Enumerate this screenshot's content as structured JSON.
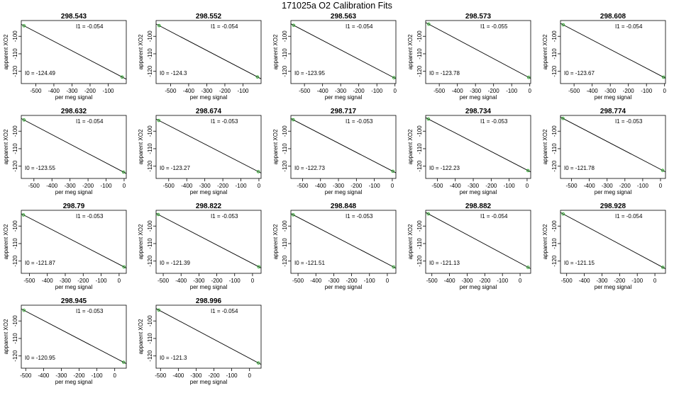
{
  "title": "171025a   O2 Calibration Fits",
  "colors": {
    "line": "#000000",
    "points": "#22aa22",
    "frame": "#000000"
  },
  "chart_data": [
    {
      "type": "scatter",
      "title": "298.543",
      "xlabel": "per meg signal",
      "ylabel": "apparent XO2",
      "xlim": [
        -580,
        0
      ],
      "ylim": [
        -127,
        -91
      ],
      "xticks": [
        -500,
        -400,
        -300,
        -200,
        -100
      ],
      "yticks": [
        -100,
        -110,
        -120
      ],
      "slope_label": "I1 =  -0.054",
      "intercept_label": "I0 =  -124.49",
      "points": [
        {
          "x": -565,
          "y": -93.98
        },
        {
          "x": -23,
          "y": -123.25
        }
      ],
      "fit": {
        "slope": -0.054,
        "intercept": -124.49
      }
    },
    {
      "type": "scatter",
      "title": "298.552",
      "xlabel": "per meg signal",
      "ylabel": "apparent XO2",
      "xlim": [
        -580,
        0
      ],
      "ylim": [
        -127,
        -91
      ],
      "xticks": [
        -500,
        -400,
        -300,
        -200,
        -100
      ],
      "yticks": [
        -100,
        -110,
        -120
      ],
      "slope_label": "I1 =  -0.054",
      "intercept_label": "I0 =  -124.3",
      "points": [
        {
          "x": -563,
          "y": -93.9
        },
        {
          "x": -20,
          "y": -123.22
        }
      ],
      "fit": {
        "slope": -0.054,
        "intercept": -124.3
      }
    },
    {
      "type": "scatter",
      "title": "298.563",
      "xlabel": "per meg signal",
      "ylabel": "apparent XO2",
      "xlim": [
        -575,
        5
      ],
      "ylim": [
        -127,
        -91
      ],
      "xticks": [
        -500,
        -400,
        -300,
        -200,
        -100,
        0
      ],
      "yticks": [
        -100,
        -110,
        -120
      ],
      "slope_label": "I1 =  -0.054",
      "intercept_label": "I0 =  -123.95",
      "points": [
        {
          "x": -560,
          "y": -93.71
        },
        {
          "x": -6,
          "y": -123.63
        }
      ],
      "fit": {
        "slope": -0.054,
        "intercept": -123.95
      }
    },
    {
      "type": "scatter",
      "title": "298.573",
      "xlabel": "per meg signal",
      "ylabel": "apparent XO2",
      "xlim": [
        -575,
        5
      ],
      "ylim": [
        -127,
        -91
      ],
      "xticks": [
        -500,
        -400,
        -300,
        -200,
        -100,
        0
      ],
      "yticks": [
        -100,
        -110,
        -120
      ],
      "slope_label": "I1 =  -0.055",
      "intercept_label": "I0 =  -123.78",
      "points": [
        {
          "x": -558,
          "y": -93.09
        },
        {
          "x": -6,
          "y": -123.45
        }
      ],
      "fit": {
        "slope": -0.055,
        "intercept": -123.78
      }
    },
    {
      "type": "scatter",
      "title": "298.608",
      "xlabel": "per meg signal",
      "ylabel": "apparent XO2",
      "xlim": [
        -575,
        5
      ],
      "ylim": [
        -127,
        -91
      ],
      "xticks": [
        -500,
        -400,
        -300,
        -200,
        -100,
        0
      ],
      "yticks": [
        -100,
        -110,
        -120
      ],
      "slope_label": "I1 =  -0.054",
      "intercept_label": "I0 =  -123.67",
      "points": [
        {
          "x": -560,
          "y": -93.43
        },
        {
          "x": -6,
          "y": -123.35
        }
      ],
      "fit": {
        "slope": -0.054,
        "intercept": -123.67
      }
    },
    {
      "type": "scatter",
      "title": "298.632",
      "xlabel": "per meg signal",
      "ylabel": "apparent XO2",
      "xlim": [
        -570,
        12
      ],
      "ylim": [
        -127,
        -91
      ],
      "xticks": [
        -500,
        -400,
        -300,
        -200,
        -100,
        0
      ],
      "yticks": [
        -100,
        -110,
        -120
      ],
      "slope_label": "I1 =  -0.054",
      "intercept_label": "I0 =  -123.55",
      "points": [
        {
          "x": -555,
          "y": -93.58
        },
        {
          "x": -3,
          "y": -123.39
        }
      ],
      "fit": {
        "slope": -0.054,
        "intercept": -123.55
      }
    },
    {
      "type": "scatter",
      "title": "298.674",
      "xlabel": "per meg signal",
      "ylabel": "apparent XO2",
      "xlim": [
        -570,
        12
      ],
      "ylim": [
        -127,
        -91
      ],
      "xticks": [
        -500,
        -400,
        -300,
        -200,
        -100,
        0
      ],
      "yticks": [
        -100,
        -110,
        -120
      ],
      "slope_label": "I1 =  -0.053",
      "intercept_label": "I0 =  -123.27",
      "points": [
        {
          "x": -555,
          "y": -93.86
        },
        {
          "x": -3,
          "y": -123.11
        }
      ],
      "fit": {
        "slope": -0.053,
        "intercept": -123.27
      }
    },
    {
      "type": "scatter",
      "title": "298.717",
      "xlabel": "per meg signal",
      "ylabel": "apparent XO2",
      "xlim": [
        -565,
        20
      ],
      "ylim": [
        -127,
        -91
      ],
      "xticks": [
        -500,
        -400,
        -300,
        -200,
        -100,
        0
      ],
      "yticks": [
        -100,
        -110,
        -120
      ],
      "slope_label": "I1 =  -0.053",
      "intercept_label": "I0 =  -122.73",
      "points": [
        {
          "x": -552,
          "y": -93.47
        },
        {
          "x": 3,
          "y": -122.89
        }
      ],
      "fit": {
        "slope": -0.053,
        "intercept": -122.73
      }
    },
    {
      "type": "scatter",
      "title": "298.734",
      "xlabel": "per meg signal",
      "ylabel": "apparent XO2",
      "xlim": [
        -565,
        20
      ],
      "ylim": [
        -127,
        -91
      ],
      "xticks": [
        -500,
        -400,
        -300,
        -200,
        -100,
        0
      ],
      "yticks": [
        -100,
        -110,
        -120
      ],
      "slope_label": "I1 =  -0.053",
      "intercept_label": "I0 =  -122.23",
      "points": [
        {
          "x": -550,
          "y": -93.08
        },
        {
          "x": 5,
          "y": -122.5
        }
      ],
      "fit": {
        "slope": -0.053,
        "intercept": -122.23
      }
    },
    {
      "type": "scatter",
      "title": "298.774",
      "xlabel": "per meg signal",
      "ylabel": "apparent XO2",
      "xlim": [
        -562,
        28
      ],
      "ylim": [
        -127,
        -91
      ],
      "xticks": [
        -500,
        -400,
        -300,
        -200,
        -100,
        0
      ],
      "yticks": [
        -100,
        -110,
        -120
      ],
      "slope_label": "I1 =  -0.053",
      "intercept_label": "I0 =  -121.78",
      "points": [
        {
          "x": -548,
          "y": -92.74
        },
        {
          "x": 12,
          "y": -122.42
        }
      ],
      "fit": {
        "slope": -0.053,
        "intercept": -121.78
      }
    },
    {
      "type": "scatter",
      "title": "298.79",
      "xlabel": "per meg signal",
      "ylabel": "apparent XO2",
      "xlim": [
        -545,
        40
      ],
      "ylim": [
        -127,
        -91
      ],
      "xticks": [
        -500,
        -400,
        -300,
        -200,
        -100,
        0
      ],
      "yticks": [
        -100,
        -110,
        -120
      ],
      "slope_label": "I1 =  -0.053",
      "intercept_label": "I0 =  -121.87",
      "points": [
        {
          "x": -533,
          "y": -93.62
        },
        {
          "x": 27,
          "y": -123.3
        }
      ],
      "fit": {
        "slope": -0.053,
        "intercept": -121.87
      }
    },
    {
      "type": "scatter",
      "title": "298.822",
      "xlabel": "per meg signal",
      "ylabel": "apparent XO2",
      "xlim": [
        -540,
        48
      ],
      "ylim": [
        -127,
        -91
      ],
      "xticks": [
        -500,
        -400,
        -300,
        -200,
        -100,
        0
      ],
      "yticks": [
        -100,
        -110,
        -120
      ],
      "slope_label": "I1 =  -0.053",
      "intercept_label": "I0 =  -121.39",
      "points": [
        {
          "x": -528,
          "y": -93.41
        },
        {
          "x": 35,
          "y": -123.25
        }
      ],
      "fit": {
        "slope": -0.053,
        "intercept": -121.39
      }
    },
    {
      "type": "scatter",
      "title": "298.848",
      "xlabel": "per meg signal",
      "ylabel": "apparent XO2",
      "xlim": [
        -540,
        48
      ],
      "ylim": [
        -127,
        -91
      ],
      "xticks": [
        -500,
        -400,
        -300,
        -200,
        -100,
        0
      ],
      "yticks": [
        -100,
        -110,
        -120
      ],
      "slope_label": "I1 =  -0.053",
      "intercept_label": "I0 =  -121.51",
      "points": [
        {
          "x": -527,
          "y": -93.58
        },
        {
          "x": 35,
          "y": -123.37
        }
      ],
      "fit": {
        "slope": -0.053,
        "intercept": -121.51
      }
    },
    {
      "type": "scatter",
      "title": "298.882",
      "xlabel": "per meg signal",
      "ylabel": "apparent XO2",
      "xlim": [
        -535,
        60
      ],
      "ylim": [
        -127,
        -91
      ],
      "xticks": [
        -500,
        -400,
        -300,
        -200,
        -100,
        0
      ],
      "yticks": [
        -100,
        -110,
        -120
      ],
      "slope_label": "I1 =  -0.054",
      "intercept_label": "I0 =  -121.13",
      "points": [
        {
          "x": -520,
          "y": -93.05
        },
        {
          "x": 45,
          "y": -123.56
        }
      ],
      "fit": {
        "slope": -0.054,
        "intercept": -121.13
      }
    },
    {
      "type": "scatter",
      "title": "298.928",
      "xlabel": "per meg signal",
      "ylabel": "apparent XO2",
      "xlim": [
        -535,
        60
      ],
      "ylim": [
        -127,
        -91
      ],
      "xticks": [
        -500,
        -400,
        -300,
        -200,
        -100,
        0
      ],
      "yticks": [
        -100,
        -110,
        -120
      ],
      "slope_label": "I1 =  -0.054",
      "intercept_label": "I0 =  -121.15",
      "points": [
        {
          "x": -520,
          "y": -93.07
        },
        {
          "x": 45,
          "y": -123.58
        }
      ],
      "fit": {
        "slope": -0.054,
        "intercept": -121.15
      }
    },
    {
      "type": "scatter",
      "title": "298.945",
      "xlabel": "per meg signal",
      "ylabel": "apparent XO2",
      "xlim": [
        -525,
        65
      ],
      "ylim": [
        -127,
        -91
      ],
      "xticks": [
        -500,
        -400,
        -300,
        -200,
        -100,
        0
      ],
      "yticks": [
        -100,
        -110,
        -120
      ],
      "slope_label": "I1 =  -0.053",
      "intercept_label": "I0 =  -120.95",
      "points": [
        {
          "x": -510,
          "y": -93.92
        },
        {
          "x": 50,
          "y": -123.6
        }
      ],
      "fit": {
        "slope": -0.053,
        "intercept": -120.95
      }
    },
    {
      "type": "scatter",
      "title": "298.996",
      "xlabel": "per meg signal",
      "ylabel": "apparent XO2",
      "xlim": [
        -525,
        65
      ],
      "ylim": [
        -127,
        -91
      ],
      "xticks": [
        -500,
        -400,
        -300,
        -200,
        -100,
        0
      ],
      "yticks": [
        -100,
        -110,
        -120
      ],
      "slope_label": "I1 =  -0.054",
      "intercept_label": "I0 =  -121.3",
      "points": [
        {
          "x": -510,
          "y": -93.76
        },
        {
          "x": 50,
          "y": -124.0
        }
      ],
      "fit": {
        "slope": -0.054,
        "intercept": -121.3
      }
    }
  ]
}
